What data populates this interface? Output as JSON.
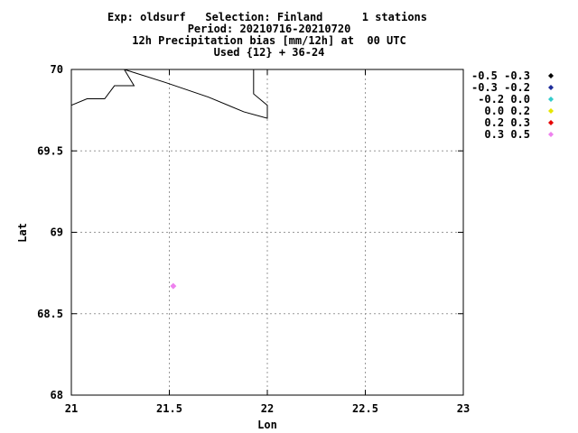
{
  "chart_data": {
    "type": "scatter",
    "title_lines": [
      "Exp: oldsurf   Selection: Finland      1 stations",
      "Period: 20210716-20210720",
      "12h Precipitation bias [mm/12h] at  00 UTC",
      "Used {12} + 36-24"
    ],
    "xlabel": "Lon",
    "ylabel": "Lat",
    "xlim": [
      21,
      23
    ],
    "ylim": [
      68,
      70
    ],
    "x_ticks": [
      21,
      21.5,
      22,
      22.5,
      23
    ],
    "x_tick_labels": [
      "21",
      "21.5",
      "22",
      "22.5",
      "23"
    ],
    "y_ticks": [
      68,
      68.5,
      69,
      69.5,
      70
    ],
    "y_tick_labels": [
      "68",
      "68.5",
      "69",
      "69.5",
      "70"
    ],
    "grid": true,
    "legend_placement": "right-top",
    "legend": [
      {
        "label": "-0.5 -0.3",
        "color": "#000000"
      },
      {
        "label": "-0.3 -0.2",
        "color": "#1f2d9a"
      },
      {
        "label": "-0.2 0.0",
        "color": "#33cccc"
      },
      {
        "label": "0.0 0.2",
        "color": "#e6e600"
      },
      {
        "label": "0.2 0.3",
        "color": "#e60000"
      },
      {
        "label": "0.3 0.5",
        "color": "#ee82ee"
      }
    ],
    "points": [
      {
        "lon": 21.52,
        "lat": 68.67,
        "color": "#ee82ee"
      }
    ],
    "coastlines": [
      [
        [
          21.0,
          69.78
        ],
        [
          21.08,
          69.82
        ],
        [
          21.17,
          69.82
        ],
        [
          21.22,
          69.9
        ],
        [
          21.32,
          69.9
        ],
        [
          21.27,
          70.0
        ]
      ],
      [
        [
          21.27,
          70.0
        ],
        [
          21.48,
          69.92
        ],
        [
          21.7,
          69.83
        ],
        [
          21.88,
          69.74
        ],
        [
          22.0,
          69.7
        ],
        [
          22.0,
          69.78
        ],
        [
          21.93,
          69.85
        ],
        [
          21.93,
          70.0
        ]
      ]
    ]
  }
}
